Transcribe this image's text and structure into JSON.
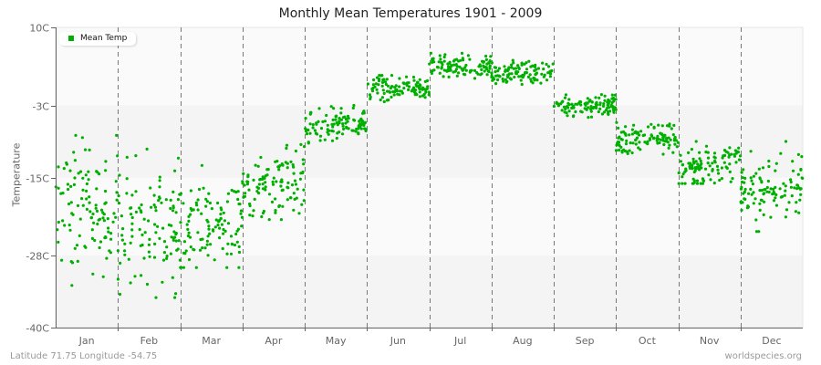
{
  "title": "Monthly Mean Temperatures 1901 - 2009",
  "footer": {
    "location": "Latitude 71.75 Longitude -54.75",
    "credit": "worldspecies.org"
  },
  "colors": {
    "series": "#00b000",
    "band_light": "#fafafa",
    "band_dark": "#f4f4f4",
    "gridline": "#777777",
    "axis": "#666666"
  },
  "chart_data": {
    "type": "scatter",
    "title": "Monthly Mean Temperatures 1901 - 2009",
    "xlabel": "",
    "ylabel": "Temperature",
    "ylim": [
      -40,
      10
    ],
    "yticks": [
      {
        "value": 10,
        "label": "10C"
      },
      {
        "value": -3,
        "label": "-3C"
      },
      {
        "value": -15,
        "label": "-15C"
      },
      {
        "value": -28,
        "label": "-28C"
      },
      {
        "value": -40,
        "label": "-40C"
      }
    ],
    "categories": [
      "Jan",
      "Feb",
      "Mar",
      "Apr",
      "May",
      "Jun",
      "Jul",
      "Aug",
      "Sep",
      "Oct",
      "Nov",
      "Dec"
    ],
    "legend": {
      "entries": [
        "Mean Temp"
      ],
      "position": "top-left"
    },
    "grid": {
      "vertical_dashed_month_separators": true,
      "horizontal_bands": true
    },
    "series": [
      {
        "name": "Mean Temp",
        "points_per_month": 109,
        "years": "1901-2009",
        "monthly_mean": [
          -20,
          -23,
          -23,
          -16,
          -6.5,
          0,
          3.5,
          2.5,
          -3,
          -8.5,
          -13,
          -17
        ],
        "monthly_min": [
          -34,
          -35,
          -30,
          -22,
          -10,
          -3,
          1.5,
          0.5,
          -5.5,
          -12,
          -16,
          -24
        ],
        "monthly_max": [
          -8,
          -9,
          -12,
          -9,
          -3,
          2,
          6,
          5,
          -0.5,
          -5,
          -9,
          -9
        ],
        "monthly_spread": [
          5.5,
          5.5,
          4.0,
          3.0,
          1.4,
          1.1,
          0.9,
          0.9,
          1.0,
          1.4,
          1.6,
          2.8
        ],
        "monthly_trend": [
          2,
          0,
          3,
          2.5,
          1.5,
          0.5,
          0,
          0,
          0.5,
          1,
          2,
          2
        ]
      }
    ]
  }
}
